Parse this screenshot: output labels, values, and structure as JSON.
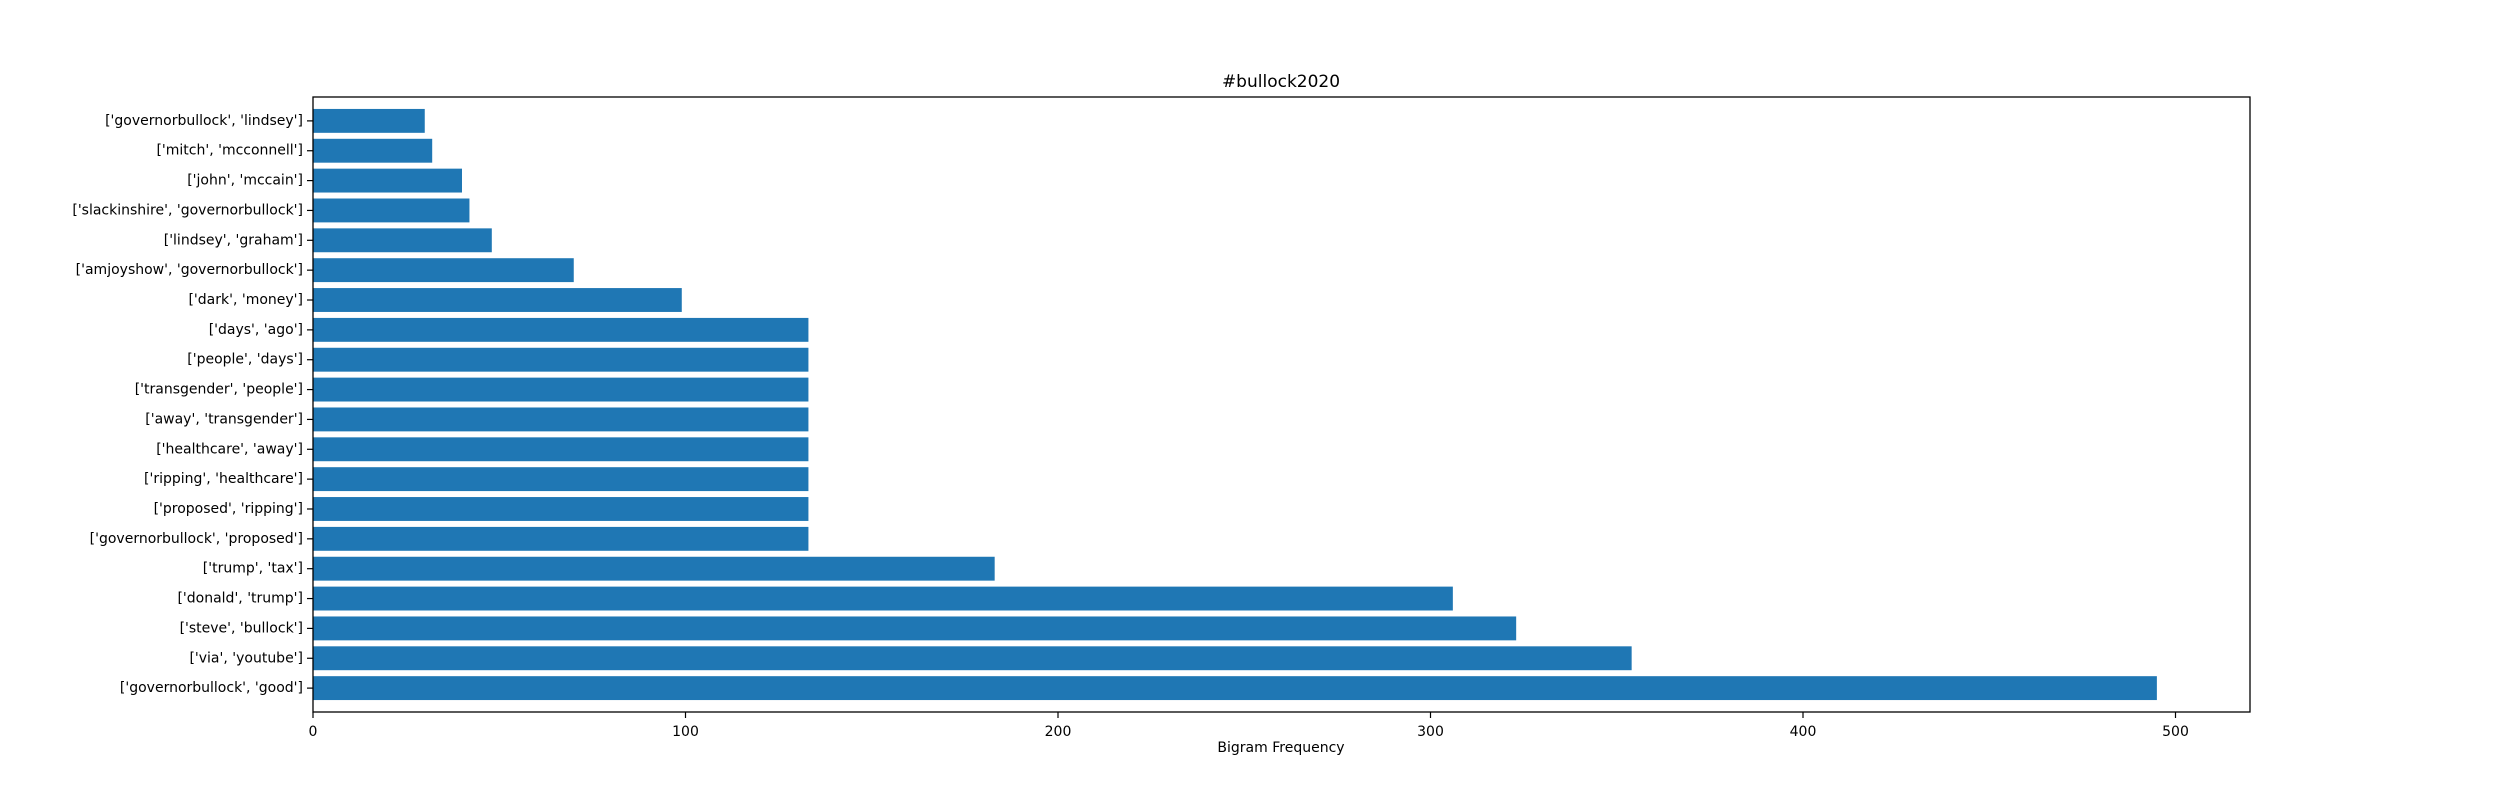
{
  "chart_data": {
    "type": "bar",
    "orientation": "horizontal",
    "title": "#bullock2020",
    "xlabel": "Bigram Frequency",
    "ylabel": "",
    "xlim": [
      0,
      520
    ],
    "xticks": [
      0,
      100,
      200,
      300,
      400,
      500
    ],
    "grid": false,
    "legend": "none",
    "bar_color": "#1f77b4",
    "categories": [
      "['governorbullock', 'good']",
      "['via', 'youtube']",
      "['steve', 'bullock']",
      "['donald', 'trump']",
      "['trump', 'tax']",
      "['governorbullock', 'proposed']",
      "['proposed', 'ripping']",
      "['ripping', 'healthcare']",
      "['healthcare', 'away']",
      "['away', 'transgender']",
      "['transgender', 'people']",
      "['people', 'days']",
      "['days', 'ago']",
      "['dark', 'money']",
      "['amjoyshow', 'governorbullock']",
      "['lindsey', 'graham']",
      "['slackinshire', 'governorbullock']",
      "['john', 'mccain']",
      "['mitch', 'mcconnell']",
      "['governorbullock', 'lindsey']"
    ],
    "values": [
      495,
      354,
      323,
      306,
      183,
      133,
      133,
      133,
      133,
      133,
      133,
      133,
      133,
      99,
      70,
      48,
      42,
      40,
      32,
      30
    ]
  }
}
